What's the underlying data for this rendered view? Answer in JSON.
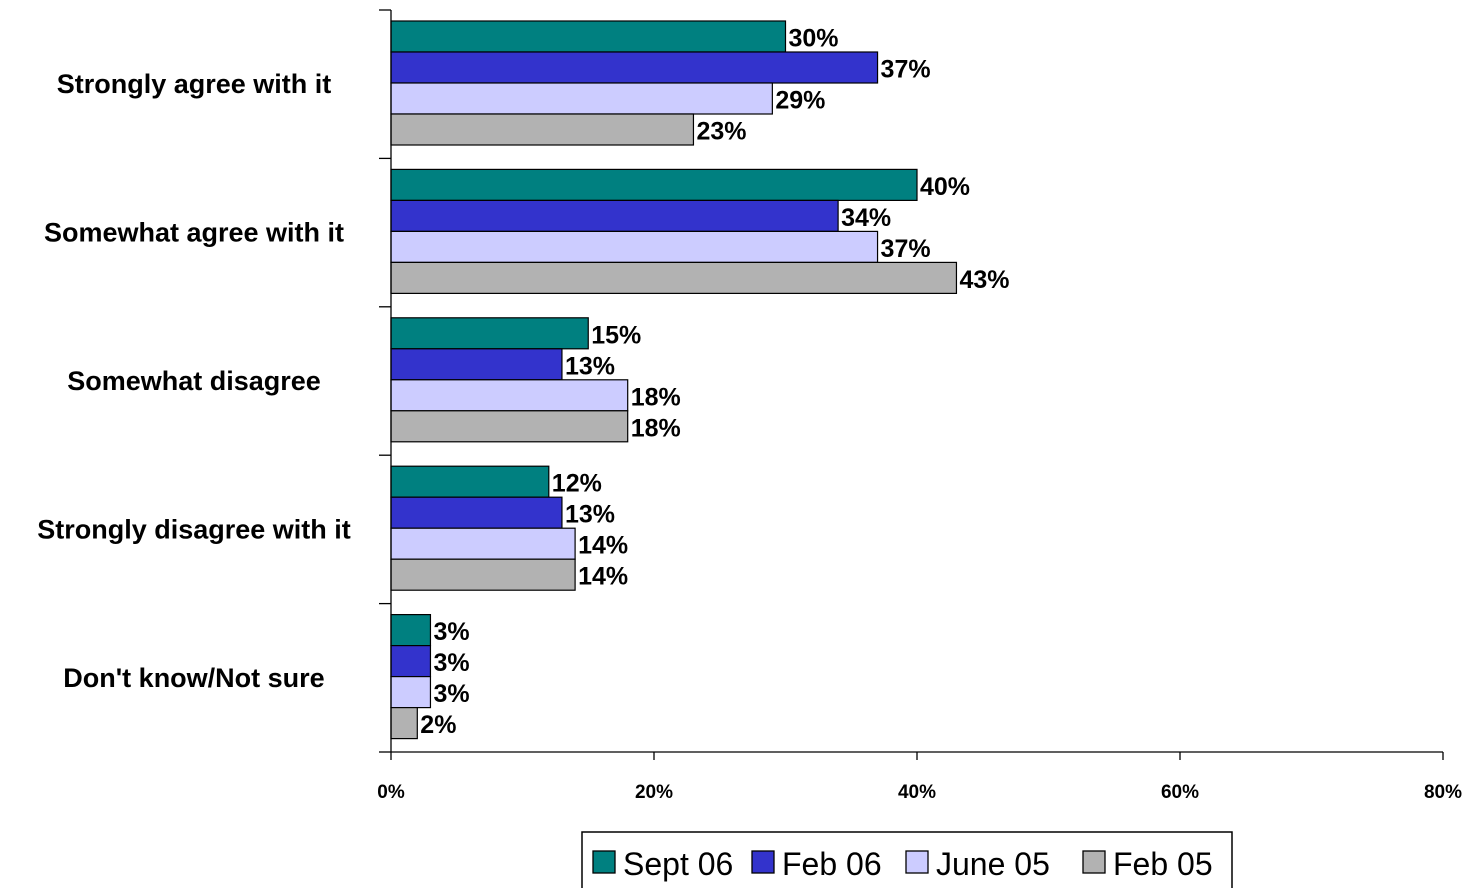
{
  "chart_data": {
    "type": "bar",
    "orientation": "horizontal",
    "categories": [
      "Strongly agree with it",
      "Somewhat agree with it",
      "Somewhat disagree",
      "Strongly disagree with it",
      "Don't know/Not sure"
    ],
    "series": [
      {
        "name": "Sept 06",
        "color": "#008080",
        "values": [
          30,
          40,
          15,
          12,
          3
        ],
        "labels": [
          "30%",
          "40%",
          "15%",
          "12%",
          "3%"
        ]
      },
      {
        "name": "Feb 06",
        "color": "#3333CC",
        "values": [
          37,
          34,
          13,
          13,
          3
        ],
        "labels": [
          "37%",
          "34%",
          "13%",
          "13%",
          "3%"
        ]
      },
      {
        "name": "June 05",
        "color": "#CCCCFF",
        "values": [
          29,
          37,
          18,
          14,
          3
        ],
        "labels": [
          "29%",
          "37%",
          "18%",
          "14%",
          "3%"
        ]
      },
      {
        "name": "Feb 05",
        "color": "#B2B2B2",
        "values": [
          23,
          43,
          18,
          14,
          2
        ],
        "labels": [
          "23%",
          "43%",
          "18%",
          "14%",
          "2%"
        ]
      }
    ],
    "xlim": [
      0,
      80
    ],
    "x_ticks": [
      "0%",
      "20%",
      "40%",
      "60%",
      "80%"
    ],
    "legend_position": "bottom",
    "grid": false
  }
}
